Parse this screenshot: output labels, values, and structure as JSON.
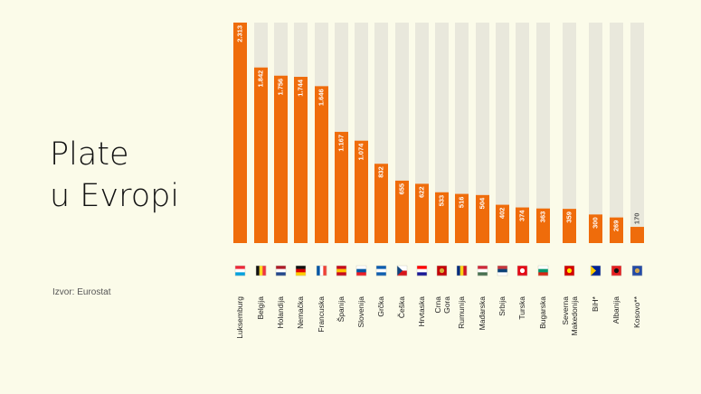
{
  "title": {
    "line1": "Plate",
    "line2": "u Evropi"
  },
  "source": "Izvor: Eurostat",
  "colors": {
    "bar": "#ef6c0b",
    "track": "#e9e8dc",
    "background": "#fbfbe9"
  },
  "chart_data": {
    "type": "bar",
    "orientation": "vertical",
    "categories": [
      "Luksemburg",
      "Belgija",
      "Holandija",
      "Nemačka",
      "Francuska",
      "Španija",
      "Slovenija",
      "Grčka",
      "Češka",
      "Hrvtaska",
      "Crna Gora",
      "Rumunija",
      "Mađarska",
      "Srbija",
      "Turska",
      "Bugarska",
      "Severna Makedonija",
      "BiH*",
      "Albanija",
      "Kosovo**"
    ],
    "values": [
      2313,
      1842,
      1756,
      1744,
      1646,
      1167,
      1074,
      832,
      655,
      622,
      533,
      516,
      504,
      402,
      374,
      363,
      359,
      300,
      269,
      170
    ],
    "labels": [
      "2.313",
      "1.842",
      "1.756",
      "1.744",
      "1.646",
      "1.167",
      "1.074",
      "832",
      "655",
      "622",
      "533",
      "516",
      "504",
      "402",
      "374",
      "363",
      "359",
      "300",
      "269",
      "170"
    ],
    "ylim": [
      0,
      2313
    ],
    "flags": [
      "luxembourg-flag-icon",
      "belgium-flag-icon",
      "netherlands-flag-icon",
      "germany-flag-icon",
      "france-flag-icon",
      "spain-flag-icon",
      "slovenia-flag-icon",
      "greece-flag-icon",
      "czechia-flag-icon",
      "croatia-flag-icon",
      "montenegro-flag-icon",
      "romania-flag-icon",
      "hungary-flag-icon",
      "serbia-flag-icon",
      "turkey-flag-icon",
      "bulgaria-flag-icon",
      "north-macedonia-flag-icon",
      "bosnia-flag-icon",
      "albania-flag-icon",
      "kosovo-flag-icon"
    ],
    "grid": false,
    "legend": "none"
  }
}
